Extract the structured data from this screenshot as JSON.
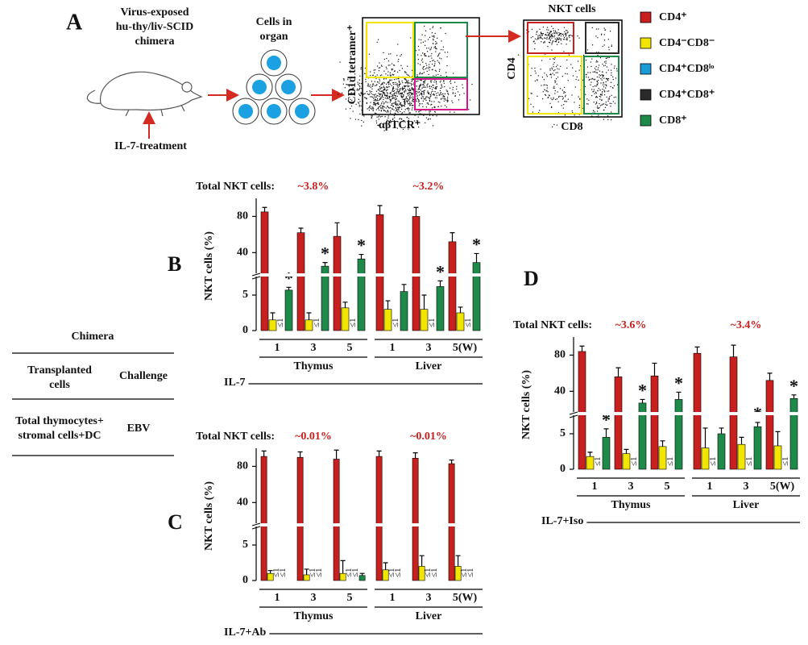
{
  "panel_a": {
    "label": "A",
    "chimera": [
      "Virus-exposed",
      "hu-thy/liv-SCID",
      "chimera"
    ],
    "treatment": "IL-7-treatment",
    "cells": [
      "Cells in",
      "organ"
    ],
    "y_axis": "CD1d tetramer⁺",
    "x_axis": "αβTCR⁺",
    "gate_title": "NKT cells",
    "gate_y": "CD4",
    "gate_x": "CD8"
  },
  "legend": [
    {
      "name": "CD4⁺",
      "color": "#c8201e"
    },
    {
      "name": "CD4⁻CD8⁻",
      "color": "#f2e600"
    },
    {
      "name": "CD4⁺CD8ˡᵒ",
      "color": "#1a9ad6"
    },
    {
      "name": "CD4⁺CD8⁺",
      "color": "#2a2a2a"
    },
    {
      "name": "CD8⁺",
      "color": "#1e8a4a"
    }
  ],
  "table": {
    "title": "Chimera",
    "headers": [
      [
        "Transplanted",
        "cells"
      ],
      [
        "Challenge"
      ]
    ],
    "rows": [
      [
        [
          "Total thymocytes+",
          "stromal cells+DC"
        ],
        [
          "EBV"
        ]
      ]
    ]
  },
  "chart_data": [
    {
      "type": "bar",
      "panel": "B",
      "total_label": "Total NKT cells:",
      "totals": [
        "~3.8%",
        "~3.2%"
      ],
      "y_label": "NKT cells (%)",
      "groups": [
        {
          "name": "Thymus",
          "categories": [
            "1",
            "3",
            "5"
          ]
        },
        {
          "name": "Liver",
          "categories": [
            "1",
            "3",
            "5(W)"
          ]
        }
      ],
      "condition": "IL-7",
      "ylim": [
        0,
        100
      ],
      "ybreak": [
        7.5,
        18
      ],
      "yticks": [
        0,
        5,
        40,
        80
      ],
      "star": "*",
      "series": [
        {
          "color": "#c8201e",
          "values": [
            85,
            62,
            58,
            82,
            80,
            52
          ],
          "errors": [
            5,
            5,
            15,
            10,
            10,
            10
          ]
        },
        {
          "color": "#f2e600",
          "values": [
            1.5,
            1.5,
            3.2,
            3,
            3,
            2.5
          ],
          "errors": [
            1,
            1,
            0.8,
            1.2,
            2,
            0.8
          ]
        },
        {
          "color": "#1a9ad6",
          "values": [
            null,
            null,
            null,
            null,
            null,
            null
          ],
          "value_labels": [
            "≤1",
            "≤1",
            "≤1",
            "≤1",
            "≤1",
            "≤1"
          ]
        },
        {
          "color": "#1e8a4a",
          "values": [
            5.7,
            25,
            33,
            5.5,
            6.2,
            29
          ],
          "errors": [
            0.4,
            4,
            5,
            1,
            0.8,
            10
          ],
          "significant": [
            true,
            true,
            true,
            false,
            true,
            true
          ]
        }
      ]
    },
    {
      "type": "bar",
      "panel": "C",
      "total_label": "Total NKT cells:",
      "totals": [
        "~0.01%",
        "~0.01%"
      ],
      "y_label": "NKT cells (%)",
      "groups": [
        {
          "name": "Thymus",
          "categories": [
            "1",
            "3",
            "5"
          ]
        },
        {
          "name": "Liver",
          "categories": [
            "1",
            "3",
            "5(W)"
          ]
        }
      ],
      "condition": "IL-7+Ab",
      "ylim": [
        0,
        100
      ],
      "ybreak": [
        7.5,
        18
      ],
      "yticks": [
        0,
        5,
        40,
        80
      ],
      "series": [
        {
          "color": "#c8201e",
          "values": [
            91,
            90,
            88,
            91,
            89,
            83
          ],
          "errors": [
            6,
            6,
            10,
            6,
            6,
            4
          ]
        },
        {
          "color": "#f2e600",
          "values": [
            1,
            0.8,
            1,
            1.5,
            2,
            2
          ],
          "errors": [
            0.4,
            0.8,
            1.8,
            1,
            1.5,
            1.5
          ]
        },
        {
          "color": "#1a9ad6",
          "values": [
            null,
            null,
            null,
            null,
            null,
            null
          ],
          "value_labels": [
            "≤1",
            "≤1",
            "≤1",
            "≤1",
            "≤1",
            "≤1"
          ]
        },
        {
          "color": "#2a2a2a",
          "values": [
            null,
            null,
            null,
            null,
            null,
            null
          ],
          "value_labels": [
            "≤1",
            "≤1",
            "≤1",
            "≤1",
            "≤1",
            "≤1"
          ]
        },
        {
          "color": "#1e8a4a",
          "values": [
            null,
            null,
            0.7,
            null,
            null,
            null
          ],
          "errors": [
            null,
            null,
            0.3,
            null,
            null,
            null
          ]
        }
      ]
    },
    {
      "type": "bar",
      "panel": "D",
      "total_label": "Total NKT cells:",
      "totals": [
        "~3.6%",
        "~3.4%"
      ],
      "y_label": "NKT cells (%)",
      "groups": [
        {
          "name": "Thymus",
          "categories": [
            "1",
            "3",
            "5"
          ]
        },
        {
          "name": "Liver",
          "categories": [
            "1",
            "3",
            "5(W)"
          ]
        }
      ],
      "condition": "IL-7+Iso",
      "ylim": [
        0,
        100
      ],
      "ybreak": [
        7.5,
        18
      ],
      "yticks": [
        0,
        5,
        40,
        80
      ],
      "star": "*",
      "series": [
        {
          "color": "#c8201e",
          "values": [
            84,
            56,
            57,
            82,
            78,
            52
          ],
          "errors": [
            6,
            10,
            14,
            7,
            13,
            8
          ]
        },
        {
          "color": "#f2e600",
          "values": [
            1.8,
            2.2,
            3.2,
            3,
            3.5,
            3.3
          ],
          "errors": [
            0.6,
            0.6,
            0.8,
            2.8,
            1,
            2
          ]
        },
        {
          "color": "#1a9ad6",
          "values": [
            null,
            null,
            null,
            null,
            null,
            null
          ],
          "value_labels": [
            "≤1",
            "≤1",
            "≤1",
            "≤1",
            "≤1",
            "≤1"
          ]
        },
        {
          "color": "#1e8a4a",
          "values": [
            4.5,
            27,
            31,
            5,
            6,
            32
          ],
          "errors": [
            1.2,
            4,
            8,
            0.8,
            0.6,
            4
          ],
          "significant": [
            true,
            true,
            true,
            false,
            true,
            true
          ]
        }
      ]
    }
  ]
}
